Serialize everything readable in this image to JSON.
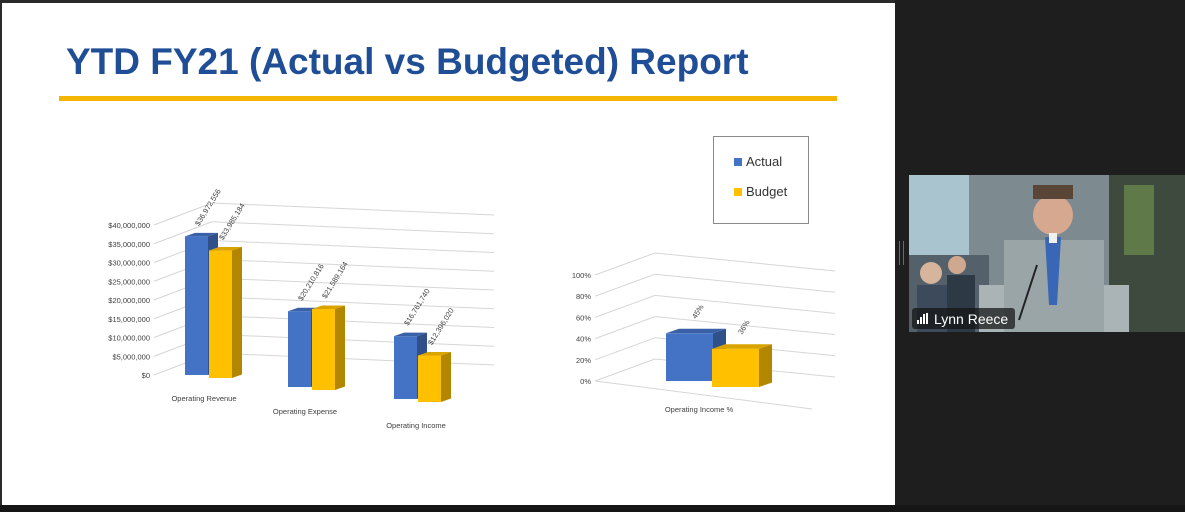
{
  "slide": {
    "title": "YTD FY21 (Actual vs Budgeted) Report"
  },
  "legend": {
    "actual_label": "Actual",
    "budget_label": "Budget"
  },
  "colors": {
    "actual": "#4472C4",
    "budget": "#FFC000",
    "title": "#1F4E96",
    "rule": "#F4B400"
  },
  "participant": {
    "name": "Lynn Reece"
  },
  "chart_data": [
    {
      "type": "bar",
      "categories": [
        "Operating Revenue",
        "Operating Expense",
        "Operating Income"
      ],
      "series": [
        {
          "name": "Actual",
          "values": [
            36972556,
            20210816,
            16761740
          ],
          "labels": [
            "$36,972,556",
            "$20,210,816",
            "$16,761,740"
          ]
        },
        {
          "name": "Budget",
          "values": [
            33985184,
            21589164,
            12396020
          ],
          "labels": [
            "$33,985,184",
            "$21,589,164",
            "$12,396,020"
          ]
        }
      ],
      "yticks": [
        "$0",
        "$5,000,000",
        "$10,000,000",
        "$15,000,000",
        "$20,000,000",
        "$25,000,000",
        "$30,000,000",
        "$35,000,000",
        "$40,000,000"
      ],
      "ylim": [
        0,
        40000000
      ],
      "grid": true,
      "legend": "top-right"
    },
    {
      "type": "bar",
      "categories": [
        "Operating Income %"
      ],
      "series": [
        {
          "name": "Actual",
          "values": [
            45
          ],
          "labels": [
            "45%"
          ]
        },
        {
          "name": "Budget",
          "values": [
            36
          ],
          "labels": [
            "36%"
          ]
        }
      ],
      "yticks": [
        "0%",
        "20%",
        "40%",
        "60%",
        "80%",
        "100%"
      ],
      "ylim": [
        0,
        100
      ],
      "grid": true
    }
  ]
}
